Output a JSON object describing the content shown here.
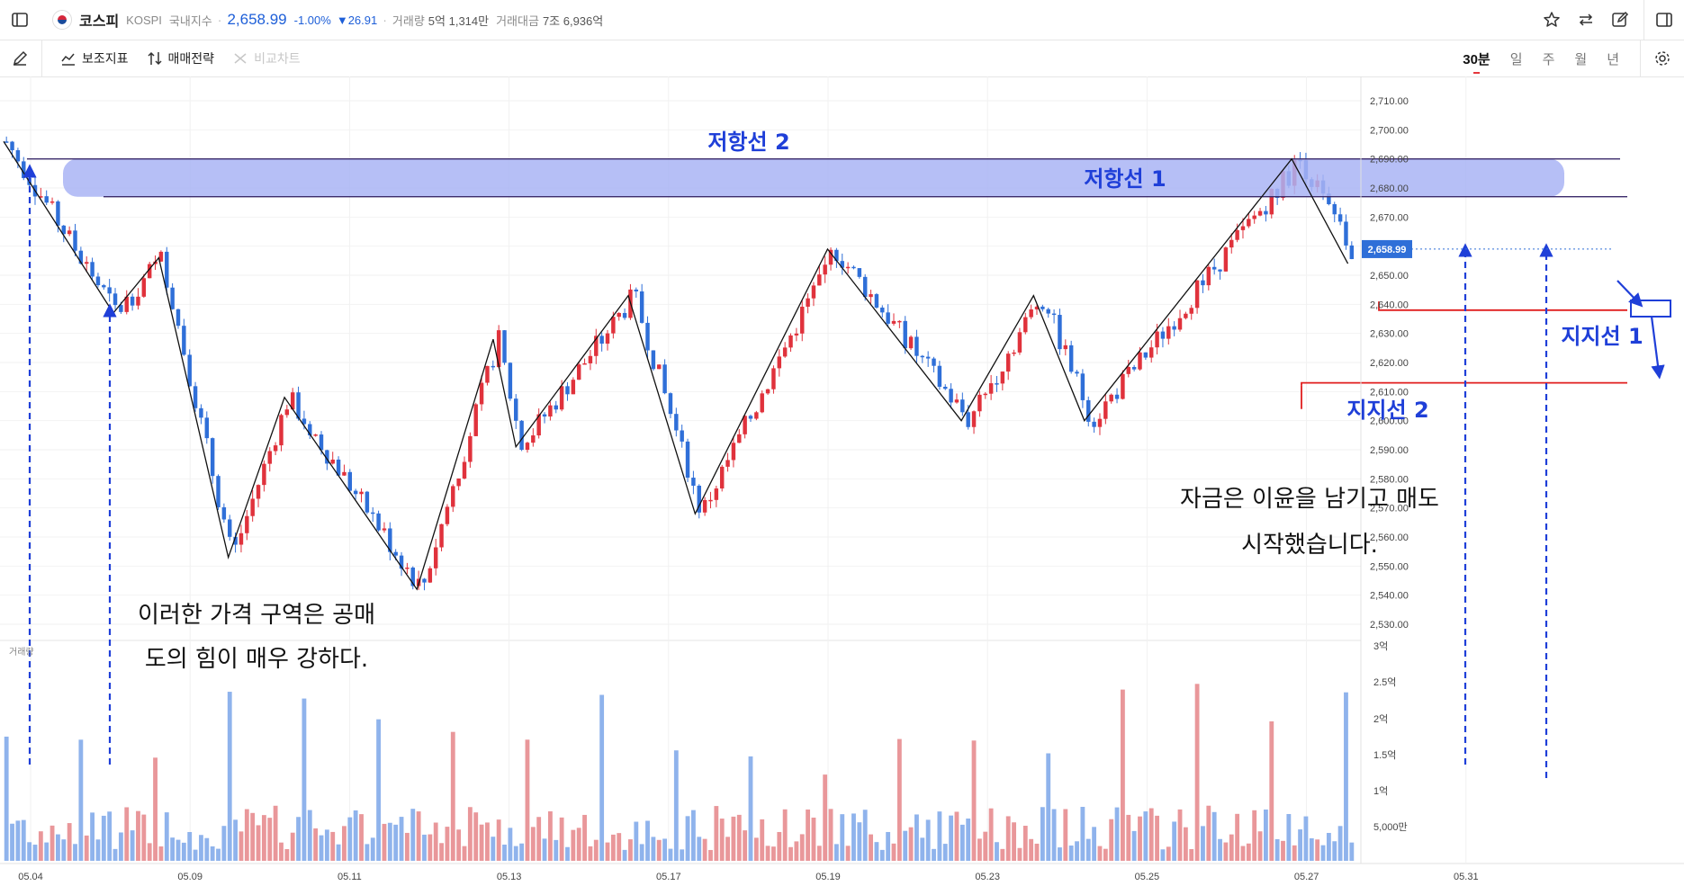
{
  "header": {
    "name": "코스피",
    "code": "KOSPI",
    "category": "국내지수",
    "price": "2,658.99",
    "change_pct": "-1.00%",
    "change_abs": "▼26.91",
    "volume_label": "거래량",
    "volume_value": "5억 1,314만",
    "amount_label": "거래대금",
    "amount_value": "7조 6,936억",
    "flag_icon": "korea-flag-icon"
  },
  "toolbar": {
    "indicator_label": "보조지표",
    "strategy_label": "매매전략",
    "compare_label": "비교차트",
    "timeframes": [
      "30분",
      "일",
      "주",
      "월",
      "년"
    ],
    "active_timeframe": "30분"
  },
  "colors": {
    "up": "#e0323c",
    "down": "#2f6fd8",
    "up_vol": "#e9979a",
    "down_vol": "#8fb3ec",
    "annotation_blue": "#1f3fd8",
    "band": "#a9b4f5",
    "support_red": "#e01e1e",
    "price_tag": "#2f6fd8"
  },
  "chart_data": {
    "type": "candlestick",
    "y_axis_labels": [
      "2,710.00",
      "2,700.00",
      "2,690.00",
      "2,680.00",
      "2,670.00",
      "2,660.00",
      "2,650.00",
      "2,640.00",
      "2,630.00",
      "2,620.00",
      "2,610.00",
      "2,600.00",
      "2,590.00",
      "2,580.00",
      "2,570.00",
      "2,560.00",
      "2,550.00",
      "2,540.00",
      "2,530.00"
    ],
    "ylim": [
      2525,
      2716
    ],
    "volume_axis_labels": [
      "3억",
      "2.5억",
      "2억",
      "1.5억",
      "1억",
      "5,000만"
    ],
    "volume_label": "거래량",
    "x_tick_labels": [
      "05.04",
      "05.09",
      "05.11",
      "05.13",
      "05.17",
      "05.19",
      "05.23",
      "05.25",
      "05.27",
      "05.31"
    ],
    "last_price_tag": "2,658.99",
    "zigzag_points": [
      {
        "session": 0,
        "price": 2696
      },
      {
        "session": 8.2,
        "price": 2637
      },
      {
        "session": 11.6,
        "price": 2656
      },
      {
        "session": 16.8,
        "price": 2553
      },
      {
        "session": 21,
        "price": 2608
      },
      {
        "session": 30.9,
        "price": 2542
      },
      {
        "session": 36.6,
        "price": 2628
      },
      {
        "session": 38.3,
        "price": 2591
      },
      {
        "session": 46.7,
        "price": 2643
      },
      {
        "session": 51.7,
        "price": 2568
      },
      {
        "session": 61.6,
        "price": 2659
      },
      {
        "session": 71.6,
        "price": 2600
      },
      {
        "session": 77,
        "price": 2643
      },
      {
        "session": 80.8,
        "price": 2600
      },
      {
        "session": 96.3,
        "price": 2690
      },
      {
        "session": 100.5,
        "price": 2654
      }
    ]
  },
  "annotations": {
    "resistance_2": "저항선 2",
    "resistance_1": "저항선 1",
    "support_1": "지지선 1",
    "support_2": "지지선 2",
    "note_left_line1": "이러한 가격 구역은 공매",
    "note_left_line2": "도의 힘이 매우 강하다.",
    "note_right_line1": "자금은 이윤을 남기고 매도",
    "note_right_line2": "시작했습니다."
  }
}
